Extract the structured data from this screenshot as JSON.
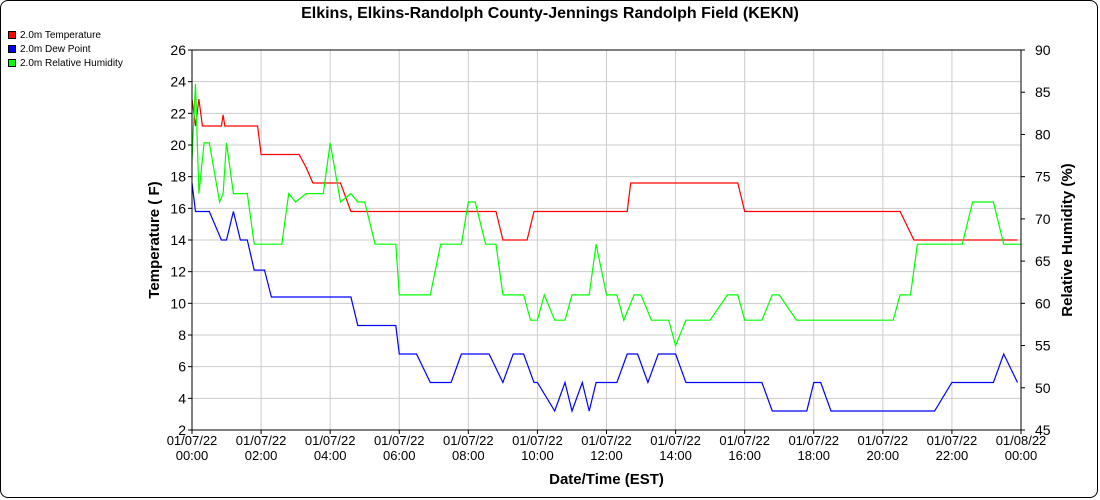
{
  "title": "Elkins, Elkins-Randolph County-Jennings Randolph Field (KEKN)",
  "legend": [
    {
      "label": "2.0m Temperature",
      "color": "#ff0000"
    },
    {
      "label": "2.0m Dew Point",
      "color": "#0000ff"
    },
    {
      "label": "2.0m Relative Humidity",
      "color": "#00ff00"
    }
  ],
  "chart_data": {
    "type": "line",
    "title": "Elkins, Elkins-Randolph County-Jennings Randolph Field (KEKN)",
    "xlabel": "Date/Time (EST)",
    "ylabel": "Temperature ( F)",
    "y2label": "Relative Humidity (%)",
    "xlim": [
      0,
      24
    ],
    "ylim": [
      2,
      26
    ],
    "y2lim": [
      45,
      90
    ],
    "x_ticks": [
      0,
      2,
      4,
      6,
      8,
      10,
      12,
      14,
      16,
      18,
      20,
      22,
      24
    ],
    "x_tick_labels": [
      [
        "01/07/22",
        "00:00"
      ],
      [
        "01/07/22",
        "02:00"
      ],
      [
        "01/07/22",
        "04:00"
      ],
      [
        "01/07/22",
        "06:00"
      ],
      [
        "01/07/22",
        "08:00"
      ],
      [
        "01/07/22",
        "10:00"
      ],
      [
        "01/07/22",
        "12:00"
      ],
      [
        "01/07/22",
        "14:00"
      ],
      [
        "01/07/22",
        "16:00"
      ],
      [
        "01/07/22",
        "18:00"
      ],
      [
        "01/07/22",
        "20:00"
      ],
      [
        "01/07/22",
        "22:00"
      ],
      [
        "01/08/22",
        "00:00"
      ]
    ],
    "y_ticks": [
      2,
      4,
      6,
      8,
      10,
      12,
      14,
      16,
      18,
      20,
      22,
      24,
      26
    ],
    "y2_ticks": [
      45,
      50,
      55,
      60,
      65,
      70,
      75,
      80,
      85,
      90
    ],
    "grid": true,
    "legend_position": "top-left",
    "series": [
      {
        "name": "2.0m Temperature",
        "axis": "left",
        "color": "#ff0000",
        "x": [
          0,
          0.1,
          0.2,
          0.3,
          0.4,
          0.5,
          0.85,
          0.9,
          0.95,
          1.0,
          1.05,
          1.9,
          2.0,
          2.05,
          2.9,
          3.0,
          3.1,
          3.3,
          3.5,
          3.6,
          3.7,
          3.8,
          3.9,
          4.0,
          4.1,
          4.2,
          4.3,
          4.6,
          4.65,
          5.0,
          5.2,
          5.3,
          5.4,
          5.6,
          5.8,
          6.0,
          6.2,
          6.3,
          6.5,
          7.5,
          7.8,
          8.2,
          8.8,
          9.0,
          9.3,
          9.5,
          9.7,
          9.9,
          10.0,
          10.5,
          11.0,
          11.5,
          12.2,
          12.6,
          12.7,
          12.8,
          13.0,
          13.5,
          13.8,
          14.0,
          14.5,
          14.6,
          15.0,
          15.5,
          15.8,
          16.0,
          16.5,
          17.0,
          17.5,
          17.8,
          18.0,
          18.3,
          18.5,
          18.8,
          19.0,
          19.5,
          19.8,
          20.0,
          20.3,
          20.5,
          20.9,
          21.1,
          21.3,
          21.5,
          21.8,
          22.0,
          22.5,
          23.0,
          23.5,
          23.9
        ],
        "y": [
          22.9,
          21.2,
          22.9,
          21.2,
          21.2,
          21.2,
          21.2,
          21.9,
          21.2,
          21.2,
          21.2,
          21.2,
          19.4,
          19.4,
          19.4,
          19.4,
          19.4,
          18.6,
          17.6,
          17.6,
          17.6,
          17.6,
          17.6,
          17.6,
          17.6,
          17.6,
          17.6,
          15.8,
          15.8,
          15.8,
          15.8,
          15.8,
          15.8,
          15.8,
          15.8,
          15.8,
          15.8,
          15.8,
          15.8,
          15.8,
          15.8,
          15.8,
          15.8,
          14.0,
          14.0,
          14.0,
          14.0,
          15.8,
          15.8,
          15.8,
          15.8,
          15.8,
          15.8,
          15.8,
          17.6,
          17.6,
          17.6,
          17.6,
          17.6,
          17.6,
          17.6,
          17.6,
          17.6,
          17.6,
          17.6,
          15.8,
          15.8,
          15.8,
          15.8,
          15.8,
          15.8,
          15.8,
          15.8,
          15.8,
          15.8,
          15.8,
          15.8,
          15.8,
          15.8,
          15.8,
          14.0,
          14.0,
          14.0,
          14.0,
          14.0,
          14.0,
          14.0,
          14.0,
          14.0,
          14.0
        ]
      },
      {
        "name": "2.0m Dew Point",
        "axis": "left",
        "color": "#0000ff",
        "x": [
          0,
          0.1,
          0.3,
          0.5,
          0.85,
          1.0,
          1.2,
          1.4,
          1.6,
          1.8,
          1.95,
          2.1,
          2.3,
          2.5,
          2.8,
          3.0,
          3.2,
          3.5,
          3.8,
          4.0,
          4.3,
          4.6,
          4.8,
          5.0,
          5.3,
          5.6,
          5.9,
          6.0,
          6.2,
          6.5,
          6.9,
          7.2,
          7.5,
          7.8,
          8.0,
          8.3,
          8.6,
          9.0,
          9.3,
          9.6,
          9.9,
          10.0,
          10.5,
          10.8,
          11.0,
          11.3,
          11.5,
          11.7,
          12.0,
          12.3,
          12.6,
          12.9,
          13.2,
          13.5,
          13.8,
          14.0,
          14.3,
          14.6,
          15.0,
          15.5,
          15.8,
          16.0,
          16.5,
          16.8,
          17.0,
          17.5,
          17.8,
          18.0,
          18.2,
          18.5,
          18.8,
          19.0,
          19.5,
          20.0,
          20.5,
          20.8,
          21.0,
          21.5,
          22.0,
          22.3,
          22.6,
          22.9,
          23.2,
          23.5,
          23.9
        ],
        "y": [
          17.6,
          15.8,
          15.8,
          15.8,
          14.0,
          14.0,
          15.8,
          14.0,
          14.0,
          12.1,
          12.1,
          12.1,
          10.4,
          10.4,
          10.4,
          10.4,
          10.4,
          10.4,
          10.4,
          10.4,
          10.4,
          10.4,
          8.6,
          8.6,
          8.6,
          8.6,
          8.6,
          6.8,
          6.8,
          6.8,
          5.0,
          5.0,
          5.0,
          6.8,
          6.8,
          6.8,
          6.8,
          5.0,
          6.8,
          6.8,
          5.0,
          5.0,
          3.2,
          5.0,
          3.2,
          5.0,
          3.2,
          5.0,
          5.0,
          5.0,
          6.8,
          6.8,
          5.0,
          6.8,
          6.8,
          6.8,
          5.0,
          5.0,
          5.0,
          5.0,
          5.0,
          5.0,
          5.0,
          3.2,
          3.2,
          3.2,
          3.2,
          5.0,
          5.0,
          3.2,
          3.2,
          3.2,
          3.2,
          3.2,
          3.2,
          3.2,
          3.2,
          3.2,
          5.0,
          5.0,
          5.0,
          5.0,
          5.0,
          6.8,
          5.0
        ]
      },
      {
        "name": "2.0m Relative Humidity",
        "axis": "right",
        "color": "#00ff00",
        "x": [
          0,
          0.1,
          0.2,
          0.35,
          0.5,
          0.8,
          0.9,
          1.0,
          1.2,
          1.4,
          1.6,
          1.8,
          1.9,
          2.0,
          2.3,
          2.6,
          2.8,
          3.0,
          3.3,
          3.5,
          3.8,
          4.0,
          4.3,
          4.6,
          4.8,
          5.0,
          5.3,
          5.6,
          5.9,
          6.0,
          6.3,
          6.5,
          6.9,
          7.2,
          7.5,
          7.8,
          8.0,
          8.2,
          8.5,
          8.8,
          9.0,
          9.3,
          9.6,
          9.8,
          10.0,
          10.2,
          10.5,
          10.8,
          11.0,
          11.3,
          11.5,
          11.7,
          12.0,
          12.3,
          12.5,
          12.8,
          13.0,
          13.3,
          13.5,
          13.8,
          14.0,
          14.3,
          14.6,
          14.8,
          15.0,
          15.5,
          15.8,
          16.0,
          16.5,
          16.8,
          17.0,
          17.5,
          17.8,
          18.0,
          18.3,
          18.5,
          18.8,
          19.0,
          19.5,
          20.0,
          20.3,
          20.5,
          20.8,
          21.0,
          21.3,
          21.5,
          21.8,
          22.0,
          22.3,
          22.6,
          22.9,
          23.2,
          23.5,
          23.8,
          24.0
        ],
        "y": [
          77,
          86,
          73,
          79,
          79,
          72,
          73,
          79,
          73,
          73,
          73,
          67,
          67,
          67,
          67,
          67,
          73,
          72,
          73,
          73,
          73,
          79,
          72,
          73,
          72,
          72,
          67,
          67,
          67,
          61,
          61,
          61,
          61,
          67,
          67,
          67,
          72,
          72,
          67,
          67,
          61,
          61,
          61,
          58,
          58,
          61,
          58,
          58,
          61,
          61,
          61,
          67,
          61,
          61,
          58,
          61,
          61,
          58,
          58,
          58,
          55,
          58,
          58,
          58,
          58,
          61,
          61,
          58,
          58,
          61,
          61,
          58,
          58,
          58,
          58,
          58,
          58,
          58,
          58,
          58,
          58,
          61,
          61,
          67,
          67,
          67,
          67,
          67,
          67,
          72,
          72,
          72,
          67,
          67,
          67
        ]
      }
    ]
  }
}
